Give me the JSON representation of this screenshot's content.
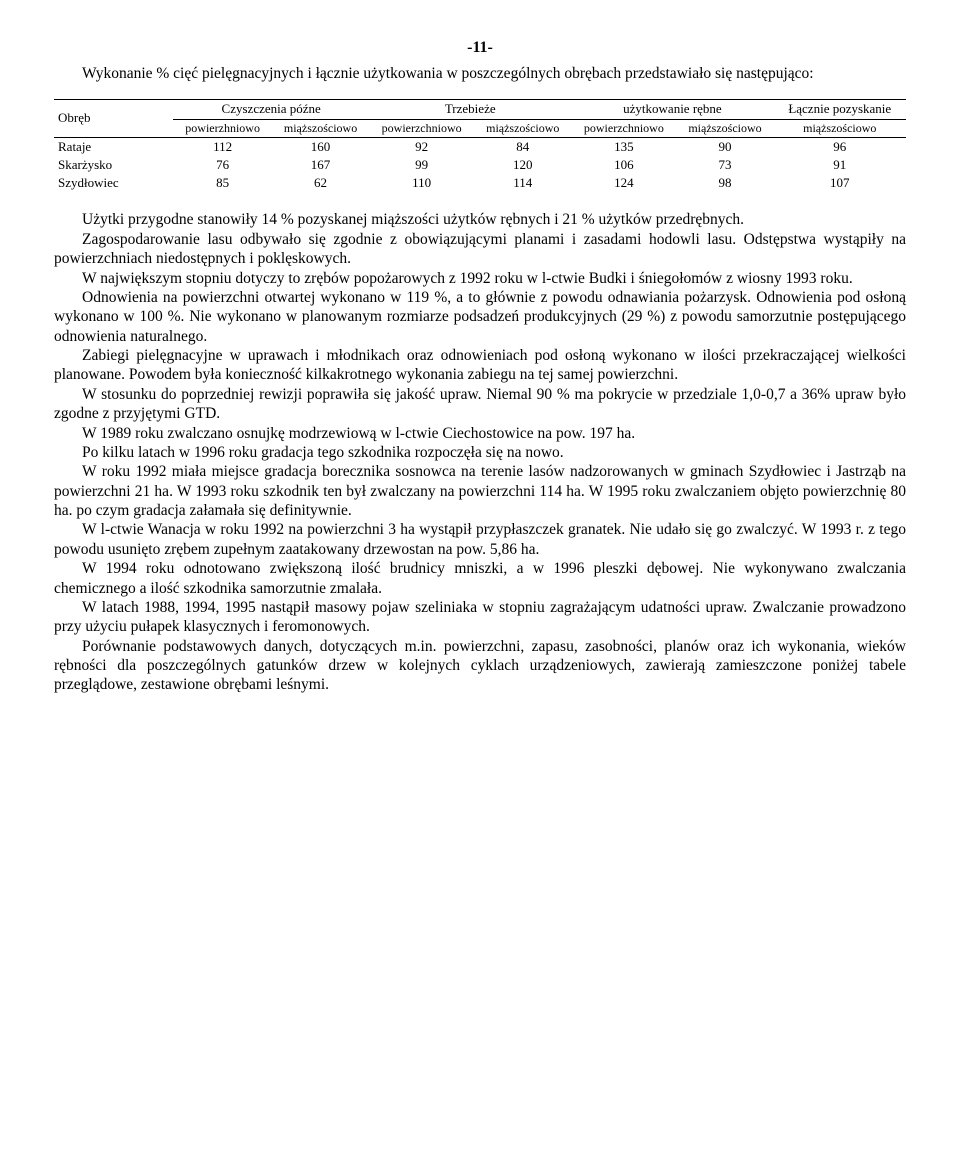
{
  "pageNumber": "-11-",
  "intro": "Wykonanie % cięć pielęgnacyjnych i łącznie użytkowania w poszczególnych obrębach przedstawiało się następująco:",
  "table": {
    "col_obreb": "Obręb",
    "grp1": "Czyszczenia późne",
    "grp2": "Trzebieże",
    "grp3": "użytkowanie rębne",
    "grp4": "Łącznie pozyskanie",
    "sub_pow": "powierzhniowo",
    "sub_pow2": "powierzchniowo",
    "sub_miaz": "miąższościowo",
    "rows": [
      {
        "name": "Rataje",
        "c1": "112",
        "c2": "160",
        "c3": "92",
        "c4": "84",
        "c5": "135",
        "c6": "90",
        "c7": "96"
      },
      {
        "name": "Skarżysko",
        "c1": "76",
        "c2": "167",
        "c3": "99",
        "c4": "120",
        "c5": "106",
        "c6": "73",
        "c7": "91"
      },
      {
        "name": "Szydłowiec",
        "c1": "85",
        "c2": "62",
        "c3": "110",
        "c4": "114",
        "c5": "124",
        "c6": "98",
        "c7": "107"
      }
    ]
  },
  "paras": [
    "Użytki przygodne stanowiły 14 % pozyskanej miąższości użytków rębnych i 21 % użytków przedrębnych.",
    "Zagospodarowanie lasu odbywało się zgodnie z obowiązującymi planami i zasadami hodowli lasu. Odstępstwa wystąpiły na powierzchniach niedostępnych i poklęskowych.",
    "W największym stopniu dotyczy to zrębów popożarowych z 1992 roku w l-ctwie Budki i śniegołomów z wiosny 1993 roku.",
    "Odnowienia na powierzchni otwartej wykonano w 119 %, a to głównie z powodu odnawiania pożarzysk. Odnowienia pod osłoną wykonano w 100 %. Nie wykonano w planowanym rozmiarze podsadzeń produkcyjnych (29 %) z powodu samorzutnie postępującego odnowienia naturalnego.",
    "Zabiegi pielęgnacyjne w uprawach i młodnikach oraz odnowieniach pod osłoną wykonano w ilości przekraczającej wielkości planowane. Powodem była konieczność kilkakrotnego wykonania zabiegu na tej samej powierzchni.",
    "W stosunku do poprzedniej rewizji poprawiła się jakość upraw. Niemal 90 % ma pokrycie w przedziale 1,0-0,7 a 36% upraw było zgodne z przyjętymi GTD.",
    "W 1989 roku zwalczano osnujkę modrzewiową w l-ctwie Ciechostowice na pow. 197 ha.",
    "Po kilku latach w 1996 roku gradacja tego szkodnika rozpoczęła się na nowo.",
    "W roku 1992 miała miejsce gradacja borecznika sosnowca na terenie lasów nadzorowanych w gminach Szydłowiec i Jastrząb na powierzchni 21 ha. W 1993 roku szkodnik ten był zwalczany na powierzchni 114 ha. W 1995 roku zwalczaniem objęto powierzchnię 80 ha. po czym gradacja załamała się definitywnie.",
    "W l-ctwie Wanacja w roku 1992 na powierzchni 3 ha wystąpił przypłaszczek granatek. Nie udało się go zwalczyć. W 1993 r. z tego powodu usunięto zrębem zupełnym zaatakowany drzewostan na pow. 5,86 ha.",
    "W 1994 roku odnotowano zwiększoną ilość brudnicy mniszki, a w 1996 pleszki dębowej. Nie wykonywano zwalczania chemicznego a ilość szkodnika samorzutnie zmalała.",
    "W latach 1988, 1994, 1995 nastąpił masowy pojaw szeliniaka w stopniu zagrażającym udatności upraw. Zwalczanie prowadzono przy użyciu pułapek klasycznych i feromonowych.",
    "Porównanie podstawowych danych, dotyczących m.in. powierzchni, zapasu, zasobności, planów oraz ich wykonania, wieków rębności dla poszczególnych gatunków drzew w kolejnych cyklach urządzeniowych, zawierają zamieszczone poniżej    tabele przeglądowe, zestawione obrębami leśnymi."
  ],
  "noindentIdx": [
    7
  ]
}
